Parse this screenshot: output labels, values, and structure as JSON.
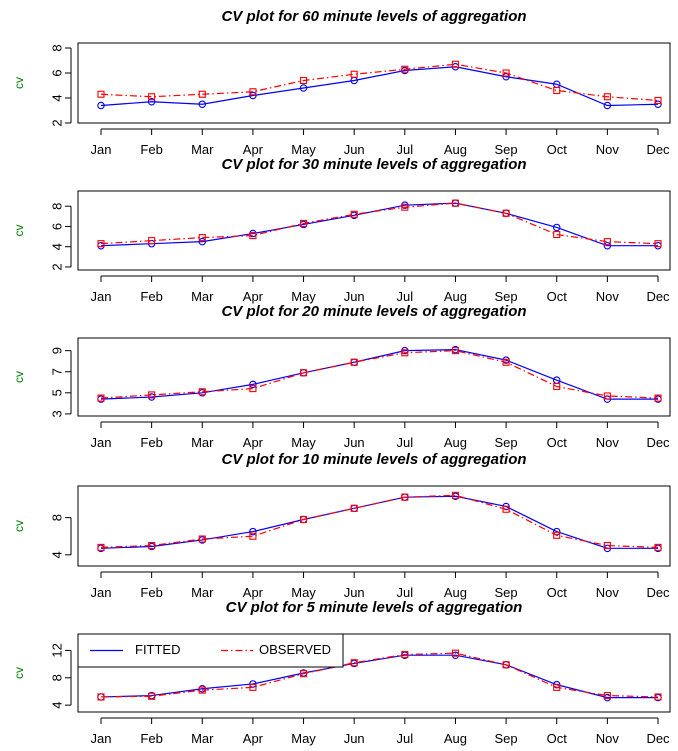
{
  "chart_data": [
    {
      "type": "line",
      "title": "CV plot for 60 minute levels of aggregation",
      "xlabel": "",
      "ylabel": "cv",
      "categories": [
        "Jan",
        "Feb",
        "Mar",
        "Apr",
        "May",
        "Jun",
        "Jul",
        "Aug",
        "Sep",
        "Oct",
        "Nov",
        "Dec"
      ],
      "ylim": [
        2,
        8.4
      ],
      "yticks": [
        2,
        4,
        6,
        8
      ],
      "grid": false,
      "series": [
        {
          "name": "FITTED",
          "values": [
            3.4,
            3.7,
            3.5,
            4.2,
            4.8,
            5.4,
            6.2,
            6.5,
            5.7,
            5.1,
            3.4,
            3.5
          ]
        },
        {
          "name": "OBSERVED",
          "values": [
            4.3,
            4.1,
            4.3,
            4.5,
            5.4,
            5.9,
            6.3,
            6.7,
            6.0,
            4.6,
            4.1,
            3.8
          ]
        }
      ]
    },
    {
      "type": "line",
      "title": "CV plot for 30 minute levels of aggregation",
      "xlabel": "",
      "ylabel": "cv",
      "categories": [
        "Jan",
        "Feb",
        "Mar",
        "Apr",
        "May",
        "Jun",
        "Jul",
        "Aug",
        "Sep",
        "Oct",
        "Nov",
        "Dec"
      ],
      "ylim": [
        1.7,
        9.5
      ],
      "yticks": [
        2,
        4,
        6,
        8
      ],
      "grid": false,
      "series": [
        {
          "name": "FITTED",
          "values": [
            4.1,
            4.3,
            4.5,
            5.3,
            6.2,
            7.1,
            8.1,
            8.3,
            7.3,
            5.9,
            4.1,
            4.1
          ]
        },
        {
          "name": "OBSERVED",
          "values": [
            4.3,
            4.6,
            4.9,
            5.1,
            6.3,
            7.2,
            7.9,
            8.3,
            7.3,
            5.2,
            4.5,
            4.3
          ]
        }
      ]
    },
    {
      "type": "line",
      "title": "CV plot for 20 minute levels of aggregation",
      "xlabel": "",
      "ylabel": "cv",
      "categories": [
        "Jan",
        "Feb",
        "Mar",
        "Apr",
        "May",
        "Jun",
        "Jul",
        "Aug",
        "Sep",
        "Oct",
        "Nov",
        "Dec"
      ],
      "ylim": [
        2.8,
        10.2
      ],
      "yticks": [
        3,
        5,
        7,
        9
      ],
      "grid": false,
      "series": [
        {
          "name": "FITTED",
          "values": [
            4.4,
            4.6,
            5.0,
            5.8,
            6.9,
            7.9,
            9.0,
            9.1,
            8.1,
            6.2,
            4.4,
            4.4
          ]
        },
        {
          "name": "OBSERVED",
          "values": [
            4.5,
            4.8,
            5.1,
            5.4,
            6.9,
            7.9,
            8.8,
            9.0,
            7.9,
            5.6,
            4.7,
            4.5
          ]
        }
      ]
    },
    {
      "type": "line",
      "title": "CV plot for 10 minute levels of aggregation",
      "xlabel": "",
      "ylabel": "cv",
      "categories": [
        "Jan",
        "Feb",
        "Mar",
        "Apr",
        "May",
        "Jun",
        "Jul",
        "Aug",
        "Sep",
        "Oct",
        "Nov",
        "Dec"
      ],
      "ylim": [
        2.8,
        11.4
      ],
      "yticks": [
        4,
        8
      ],
      "grid": false,
      "series": [
        {
          "name": "FITTED",
          "values": [
            4.7,
            4.9,
            5.6,
            6.5,
            7.8,
            9.0,
            10.2,
            10.3,
            9.2,
            6.5,
            4.7,
            4.7
          ]
        },
        {
          "name": "OBSERVED",
          "values": [
            4.8,
            5.0,
            5.7,
            6.0,
            7.8,
            9.0,
            10.2,
            10.4,
            8.9,
            6.1,
            5.0,
            4.8
          ]
        }
      ]
    },
    {
      "type": "line",
      "title": "CV plot for 5 minute levels of aggregation",
      "xlabel": "",
      "ylabel": "cv",
      "categories": [
        "Jan",
        "Feb",
        "Mar",
        "Apr",
        "May",
        "Jun",
        "Jul",
        "Aug",
        "Sep",
        "Oct",
        "Nov",
        "Dec"
      ],
      "ylim": [
        3.0,
        14.4
      ],
      "yticks": [
        4,
        8,
        12
      ],
      "grid": false,
      "legend_position": "top-left",
      "series": [
        {
          "name": "FITTED",
          "values": [
            5.2,
            5.4,
            6.4,
            7.1,
            8.7,
            10.1,
            11.3,
            11.3,
            9.9,
            7.0,
            5.1,
            5.1
          ]
        },
        {
          "name": "OBSERVED",
          "values": [
            5.2,
            5.3,
            6.2,
            6.6,
            8.6,
            10.2,
            11.4,
            11.6,
            9.9,
            6.6,
            5.4,
            5.2
          ]
        }
      ]
    }
  ],
  "legend": {
    "items": [
      {
        "label": "FITTED",
        "color": "#0000ff",
        "dash": "solid"
      },
      {
        "label": "OBSERVED",
        "color": "#ff0000",
        "dash": "dashdot"
      }
    ]
  },
  "colors": {
    "fitted": "#0000ff",
    "observed": "#ff0000",
    "ylabel": "#008000",
    "axis": "#000000"
  }
}
